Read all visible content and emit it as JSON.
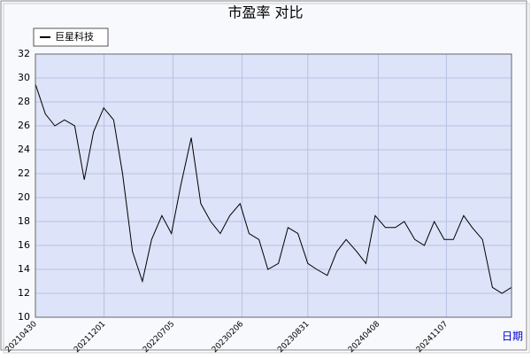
{
  "chart_data": {
    "type": "line",
    "title": "市盈率 对比",
    "x_label": "日期",
    "x": [
      "20210430",
      "20210531",
      "20210630",
      "20210730",
      "20210831",
      "20210930",
      "20211029",
      "20211130",
      "20211231",
      "20220128",
      "20220228",
      "20220331",
      "20220429",
      "20220531",
      "20220630",
      "20220729",
      "20220831",
      "20220930",
      "20221031",
      "20221130",
      "20221230",
      "20230131",
      "20230228",
      "20230331",
      "20230428",
      "20230531",
      "20230630",
      "20230731",
      "20230831",
      "20230928",
      "20231031",
      "20231130",
      "20231229",
      "20240131",
      "20240229",
      "20240329",
      "20240430",
      "20240531",
      "20240628",
      "20240731",
      "20240830",
      "20240930",
      "20241031",
      "20241129",
      "20241231",
      "20250127",
      "20250228",
      "20250331",
      "20250430",
      "20250530"
    ],
    "series": [
      {
        "name": "巨星科技",
        "color": "#000000",
        "values": [
          29.5,
          27,
          26,
          26.5,
          26,
          21.5,
          25.5,
          27.5,
          26.5,
          22,
          15.5,
          13,
          16.5,
          18.5,
          17,
          21,
          25,
          19.5,
          18,
          17,
          18.5,
          19.5,
          17,
          16.5,
          14,
          14.5,
          17.5,
          17,
          14.5,
          14,
          13.5,
          15.5,
          16.5,
          15.5,
          14.5,
          18.5,
          17.5,
          17.5,
          18,
          16.5,
          16,
          18,
          16.5,
          16.5,
          18.5,
          17.5,
          16.5,
          12.5,
          12,
          12.5
        ]
      }
    ],
    "xlim": [
      "20210430",
      "20250530"
    ],
    "xticks": [
      "20210430",
      "20211201",
      "20220705",
      "20230206",
      "20230831",
      "20240408",
      "20241107"
    ],
    "ylim": [
      10,
      32
    ],
    "yticks": [
      10,
      12,
      14,
      16,
      18,
      20,
      22,
      24,
      26,
      28,
      30,
      32
    ],
    "grid": true,
    "legend": "top-left"
  }
}
